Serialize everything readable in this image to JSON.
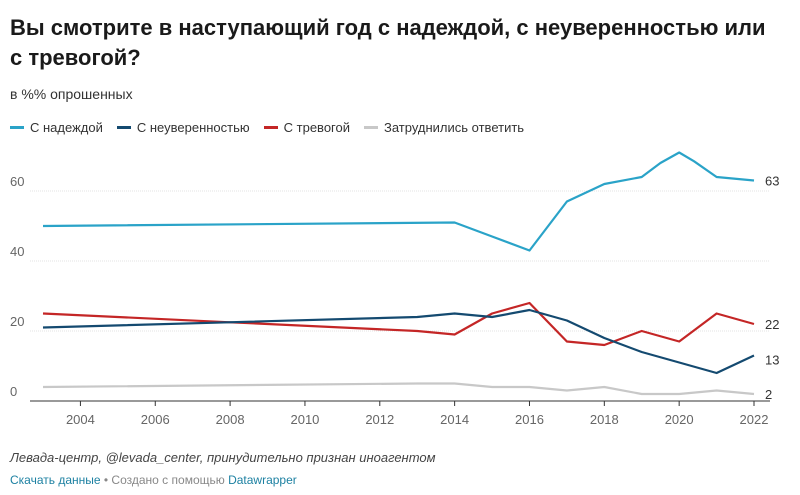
{
  "title": "Вы смотрите в наступающий год с надеждой, с неуверенностью или с тревогой?",
  "subtitle": "в %% опрошенных",
  "footer": {
    "source": "Левада-центр, @levada_center, принудительно признан иноагентом",
    "download_label": "Скачать данные",
    "separator": " • Создано с помощью ",
    "tool_label": "Datawrapper"
  },
  "chart_data": {
    "type": "line",
    "xlim": [
      2003,
      2022
    ],
    "ylim": [
      0,
      75
    ],
    "y_ticks": [
      0,
      20,
      40,
      60
    ],
    "x_ticks": [
      2004,
      2006,
      2008,
      2010,
      2012,
      2014,
      2016,
      2018,
      2020,
      2022
    ],
    "grid": true,
    "legend_position": "top",
    "series": [
      {
        "name": "С надеждой",
        "color": "#2aa3c8",
        "points": [
          [
            2003,
            50
          ],
          [
            2014,
            51
          ],
          [
            2015,
            47
          ],
          [
            2016,
            43
          ],
          [
            2017,
            57
          ],
          [
            2018,
            62
          ],
          [
            2019,
            64
          ],
          [
            2019.5,
            68
          ],
          [
            2020,
            71
          ],
          [
            2020.4,
            68.5
          ],
          [
            2021,
            64
          ],
          [
            2022,
            63
          ]
        ],
        "end_label": "63"
      },
      {
        "name": "С неуверенностью",
        "color": "#144a70",
        "points": [
          [
            2003,
            21
          ],
          [
            2013,
            24
          ],
          [
            2014,
            25
          ],
          [
            2015,
            24
          ],
          [
            2016,
            26
          ],
          [
            2017,
            23
          ],
          [
            2018,
            18
          ],
          [
            2019,
            14
          ],
          [
            2020,
            11
          ],
          [
            2021,
            8
          ],
          [
            2022,
            13
          ]
        ],
        "end_label": "13"
      },
      {
        "name": "С тревогой",
        "color": "#c42626",
        "points": [
          [
            2003,
            25
          ],
          [
            2008,
            22.5
          ],
          [
            2013,
            20
          ],
          [
            2014,
            19
          ],
          [
            2015,
            25
          ],
          [
            2016,
            28
          ],
          [
            2017,
            17
          ],
          [
            2018,
            16
          ],
          [
            2019,
            20
          ],
          [
            2020,
            17
          ],
          [
            2021,
            25
          ],
          [
            2022,
            22
          ]
        ],
        "end_label": "22"
      },
      {
        "name": "Затруднились ответить",
        "color": "#c8c8c8",
        "points": [
          [
            2003,
            4
          ],
          [
            2013,
            5
          ],
          [
            2014,
            5
          ],
          [
            2015,
            4
          ],
          [
            2016,
            4
          ],
          [
            2017,
            3
          ],
          [
            2018,
            4
          ],
          [
            2019,
            2
          ],
          [
            2020,
            2
          ],
          [
            2021,
            3
          ],
          [
            2022,
            2
          ]
        ],
        "end_label": "2"
      }
    ]
  }
}
